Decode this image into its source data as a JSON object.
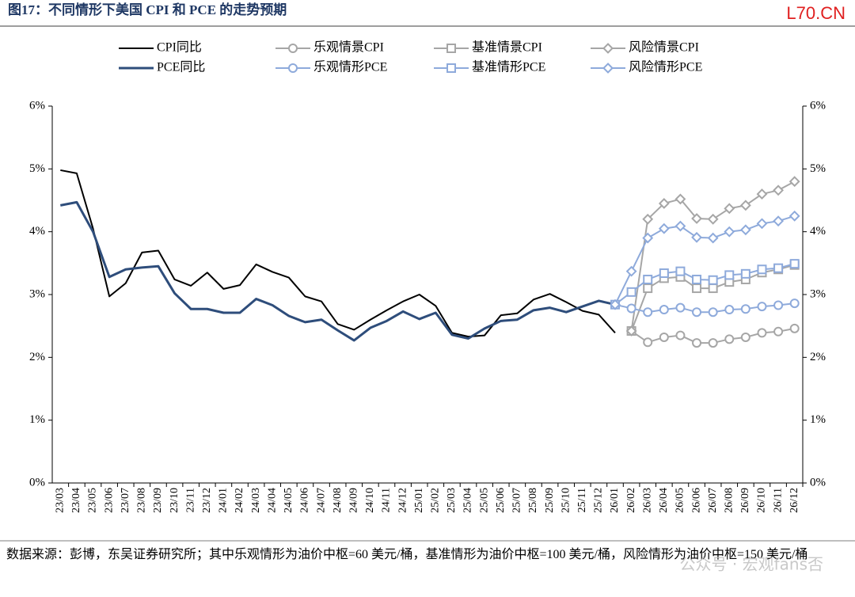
{
  "header": {
    "title": "图17：不同情形下美国 CPI 和 PCE 的走势预期",
    "brand": "L70.CN"
  },
  "chart_data": {
    "type": "line",
    "categories": [
      "23/03",
      "23/04",
      "23/05",
      "23/06",
      "23/07",
      "23/08",
      "23/09",
      "23/10",
      "23/11",
      "23/12",
      "24/01",
      "24/02",
      "24/03",
      "24/04",
      "24/05",
      "24/06",
      "24/07",
      "24/08",
      "24/09",
      "24/10",
      "24/11",
      "24/12",
      "25/01",
      "25/02",
      "25/03",
      "25/04",
      "25/05",
      "25/06",
      "25/07",
      "25/08",
      "25/09",
      "25/10",
      "25/11",
      "25/12",
      "26/01",
      "26/02",
      "26/03",
      "26/04",
      "26/05",
      "26/06",
      "26/07",
      "26/08",
      "26/09",
      "26/10",
      "26/11",
      "26/12"
    ],
    "series": [
      {
        "name": "CPI同比",
        "color": "#000000",
        "width": 2,
        "marker": "none",
        "values": [
          4.98,
          4.93,
          4.05,
          2.97,
          3.18,
          3.67,
          3.7,
          3.24,
          3.14,
          3.35,
          3.09,
          3.15,
          3.48,
          3.36,
          3.27,
          2.97,
          2.89,
          2.53,
          2.44,
          2.6,
          2.75,
          2.89,
          3.0,
          2.82,
          2.39,
          2.33,
          2.35,
          2.67,
          2.7,
          2.92,
          3.01,
          2.88,
          2.74,
          2.68,
          2.39,
          null,
          null,
          null,
          null,
          null,
          null,
          null,
          null,
          null,
          null,
          null
        ]
      },
      {
        "name": "乐观情景CPI",
        "color": "#a6a6a6",
        "width": 2,
        "marker": "circle",
        "values": [
          null,
          null,
          null,
          null,
          null,
          null,
          null,
          null,
          null,
          null,
          null,
          null,
          null,
          null,
          null,
          null,
          null,
          null,
          null,
          null,
          null,
          null,
          null,
          null,
          null,
          null,
          null,
          null,
          null,
          null,
          null,
          null,
          null,
          null,
          null,
          2.42,
          2.24,
          2.32,
          2.35,
          2.23,
          2.23,
          2.29,
          2.32,
          2.39,
          2.41,
          2.46
        ]
      },
      {
        "name": "基准情景CPI",
        "color": "#a6a6a6",
        "width": 2,
        "marker": "square",
        "values": [
          null,
          null,
          null,
          null,
          null,
          null,
          null,
          null,
          null,
          null,
          null,
          null,
          null,
          null,
          null,
          null,
          null,
          null,
          null,
          null,
          null,
          null,
          null,
          null,
          null,
          null,
          null,
          null,
          null,
          null,
          null,
          null,
          null,
          null,
          null,
          2.42,
          3.1,
          3.26,
          3.28,
          3.1,
          3.1,
          3.2,
          3.24,
          3.35,
          3.4,
          3.47
        ]
      },
      {
        "name": "风险情景CPI",
        "color": "#a6a6a6",
        "width": 2,
        "marker": "diamond",
        "values": [
          null,
          null,
          null,
          null,
          null,
          null,
          null,
          null,
          null,
          null,
          null,
          null,
          null,
          null,
          null,
          null,
          null,
          null,
          null,
          null,
          null,
          null,
          null,
          null,
          null,
          null,
          null,
          null,
          null,
          null,
          null,
          null,
          null,
          null,
          null,
          2.42,
          4.2,
          4.45,
          4.52,
          4.21,
          4.2,
          4.37,
          4.42,
          4.6,
          4.66,
          4.8
        ]
      },
      {
        "name": "PCE同比",
        "color": "#2e4d7b",
        "width": 3,
        "marker": "none",
        "values": [
          4.42,
          4.47,
          4.0,
          3.28,
          3.4,
          3.43,
          3.45,
          3.02,
          2.77,
          2.77,
          2.71,
          2.71,
          2.93,
          2.83,
          2.66,
          2.56,
          2.6,
          2.43,
          2.27,
          2.47,
          2.58,
          2.73,
          2.61,
          2.71,
          2.36,
          2.3,
          2.46,
          2.58,
          2.6,
          2.75,
          2.79,
          2.72,
          2.81,
          2.9,
          2.84,
          null,
          null,
          null,
          null,
          null,
          null,
          null,
          null,
          null,
          null,
          null
        ]
      },
      {
        "name": "乐观情形PCE",
        "color": "#8eaadb",
        "width": 2,
        "marker": "circle",
        "values": [
          null,
          null,
          null,
          null,
          null,
          null,
          null,
          null,
          null,
          null,
          null,
          null,
          null,
          null,
          null,
          null,
          null,
          null,
          null,
          null,
          null,
          null,
          null,
          null,
          null,
          null,
          null,
          null,
          null,
          null,
          null,
          null,
          null,
          null,
          2.84,
          2.78,
          2.72,
          2.76,
          2.79,
          2.72,
          2.72,
          2.76,
          2.77,
          2.81,
          2.83,
          2.86
        ]
      },
      {
        "name": "基准情形PCE",
        "color": "#8eaadb",
        "width": 2,
        "marker": "square",
        "values": [
          null,
          null,
          null,
          null,
          null,
          null,
          null,
          null,
          null,
          null,
          null,
          null,
          null,
          null,
          null,
          null,
          null,
          null,
          null,
          null,
          null,
          null,
          null,
          null,
          null,
          null,
          null,
          null,
          null,
          null,
          null,
          null,
          null,
          null,
          2.84,
          3.04,
          3.24,
          3.34,
          3.37,
          3.24,
          3.23,
          3.31,
          3.33,
          3.4,
          3.42,
          3.49
        ]
      },
      {
        "name": "风险情形PCE",
        "color": "#8eaadb",
        "width": 2,
        "marker": "diamond",
        "values": [
          null,
          null,
          null,
          null,
          null,
          null,
          null,
          null,
          null,
          null,
          null,
          null,
          null,
          null,
          null,
          null,
          null,
          null,
          null,
          null,
          null,
          null,
          null,
          null,
          null,
          null,
          null,
          null,
          null,
          null,
          null,
          null,
          null,
          null,
          2.84,
          3.37,
          3.9,
          4.05,
          4.09,
          3.91,
          3.9,
          4.0,
          4.03,
          4.13,
          4.17,
          4.25
        ]
      }
    ],
    "ylim": [
      0,
      6
    ],
    "yticks": [
      {
        "value": 0,
        "label": "0%"
      },
      {
        "value": 1,
        "label": "1%"
      },
      {
        "value": 2,
        "label": "2%"
      },
      {
        "value": 3,
        "label": "3%"
      },
      {
        "value": 4,
        "label": "4%"
      },
      {
        "value": 5,
        "label": "5%"
      },
      {
        "value": 6,
        "label": "6%"
      }
    ],
    "y2lim": [
      0,
      6
    ],
    "y2ticks": [
      {
        "value": 0,
        "label": "0%"
      },
      {
        "value": 1,
        "label": "1%"
      },
      {
        "value": 2,
        "label": "2%"
      },
      {
        "value": 3,
        "label": "3%"
      },
      {
        "value": 4,
        "label": "4%"
      },
      {
        "value": 5,
        "label": "5%"
      },
      {
        "value": 6,
        "label": "6%"
      }
    ],
    "grid": false,
    "legend": "top"
  },
  "footer": {
    "source": "数据来源：彭博，东吴证券研究所；其中乐观情形为油价中枢=60 美元/桶，基准情形为油价中枢=100 美元/桶，风险情形为油价中枢=150 美元/桶",
    "watermark": "公众号 · 宏观fans否"
  }
}
